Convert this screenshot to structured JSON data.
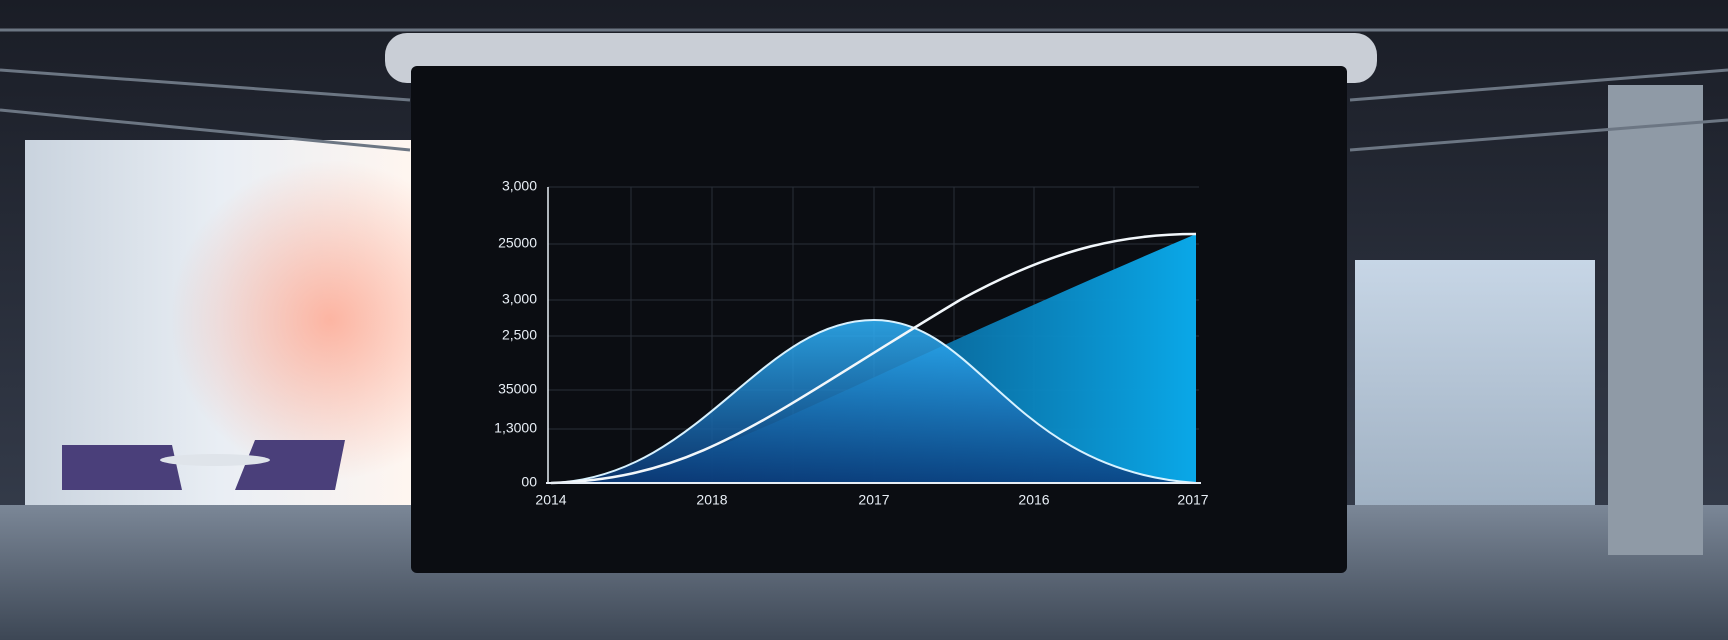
{
  "screen": {
    "y_labels": [
      "3,000",
      "25000",
      "3,000",
      "2,500",
      "35000",
      "1,3000",
      "00"
    ],
    "x_labels": [
      "2014",
      "2018",
      "2017",
      "2016",
      "2017"
    ]
  }
}
